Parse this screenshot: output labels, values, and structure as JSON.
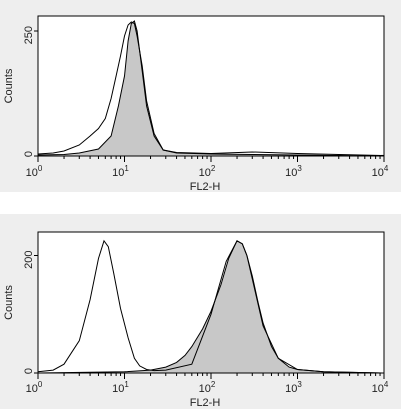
{
  "chart_data": [
    {
      "type": "area",
      "xlabel": "FL2-H",
      "ylabel": "Counts",
      "x_scale": "log",
      "xlim": [
        1,
        10000
      ],
      "ylim": [
        0,
        280
      ],
      "x_ticks": [
        {
          "base": "10",
          "exp": "0"
        },
        {
          "base": "10",
          "exp": "1"
        },
        {
          "base": "10",
          "exp": "2"
        },
        {
          "base": "10",
          "exp": "3"
        },
        {
          "base": "10",
          "exp": "4"
        }
      ],
      "y_ticks": [
        "0",
        "250"
      ],
      "series": [
        {
          "style": "filled",
          "fill": "#c8c8c8",
          "x": [
            1,
            2,
            3,
            5,
            7,
            8.5,
            10,
            11,
            12,
            13,
            14,
            16,
            18,
            22,
            28,
            40,
            100,
            300,
            1000,
            3000,
            10000
          ],
          "y": [
            2,
            3,
            6,
            14,
            40,
            100,
            160,
            230,
            265,
            270,
            250,
            170,
            100,
            40,
            12,
            6,
            4,
            3,
            2,
            1,
            0
          ]
        },
        {
          "style": "outline",
          "x": [
            1,
            1.5,
            2,
            3,
            4,
            5,
            6,
            7,
            8,
            9,
            10,
            11,
            12,
            13,
            14,
            16,
            18,
            22,
            28,
            40,
            100,
            300,
            1000,
            3000,
            10000
          ],
          "y": [
            4,
            6,
            10,
            22,
            40,
            55,
            75,
            115,
            160,
            200,
            240,
            262,
            268,
            265,
            240,
            180,
            110,
            45,
            12,
            7,
            5,
            8,
            5,
            3,
            1
          ]
        }
      ]
    },
    {
      "type": "area",
      "xlabel": "FL2-H",
      "ylabel": "Counts",
      "x_scale": "log",
      "xlim": [
        1,
        10000
      ],
      "ylim": [
        0,
        240
      ],
      "x_ticks": [
        {
          "base": "10",
          "exp": "0"
        },
        {
          "base": "10",
          "exp": "1"
        },
        {
          "base": "10",
          "exp": "2"
        },
        {
          "base": "10",
          "exp": "3"
        },
        {
          "base": "10",
          "exp": "4"
        }
      ],
      "y_ticks": [
        "0",
        "200"
      ],
      "series": [
        {
          "style": "filled",
          "fill": "#c8c8c8",
          "x": [
            1,
            10,
            20,
            30,
            40,
            50,
            60,
            80,
            100,
            130,
            160,
            200,
            230,
            260,
            300,
            350,
            400,
            500,
            600,
            800,
            1000,
            2000,
            10000
          ],
          "y": [
            0,
            2,
            5,
            10,
            18,
            30,
            45,
            75,
            105,
            150,
            195,
            225,
            220,
            200,
            165,
            120,
            85,
            45,
            25,
            10,
            6,
            2,
            0
          ]
        },
        {
          "style": "outline",
          "x": [
            1,
            1.5,
            2,
            3,
            4,
            5,
            5.8,
            6.5,
            7.5,
            9,
            11,
            13,
            15,
            18,
            22,
            30,
            60,
            100,
            150,
            200,
            230,
            260,
            300,
            400,
            600,
            1000,
            2000,
            10000
          ],
          "y": [
            2,
            5,
            15,
            55,
            125,
            195,
            225,
            215,
            170,
            110,
            60,
            25,
            12,
            6,
            4,
            5,
            15,
            100,
            190,
            225,
            220,
            200,
            160,
            80,
            25,
            6,
            2,
            0
          ]
        }
      ]
    }
  ]
}
